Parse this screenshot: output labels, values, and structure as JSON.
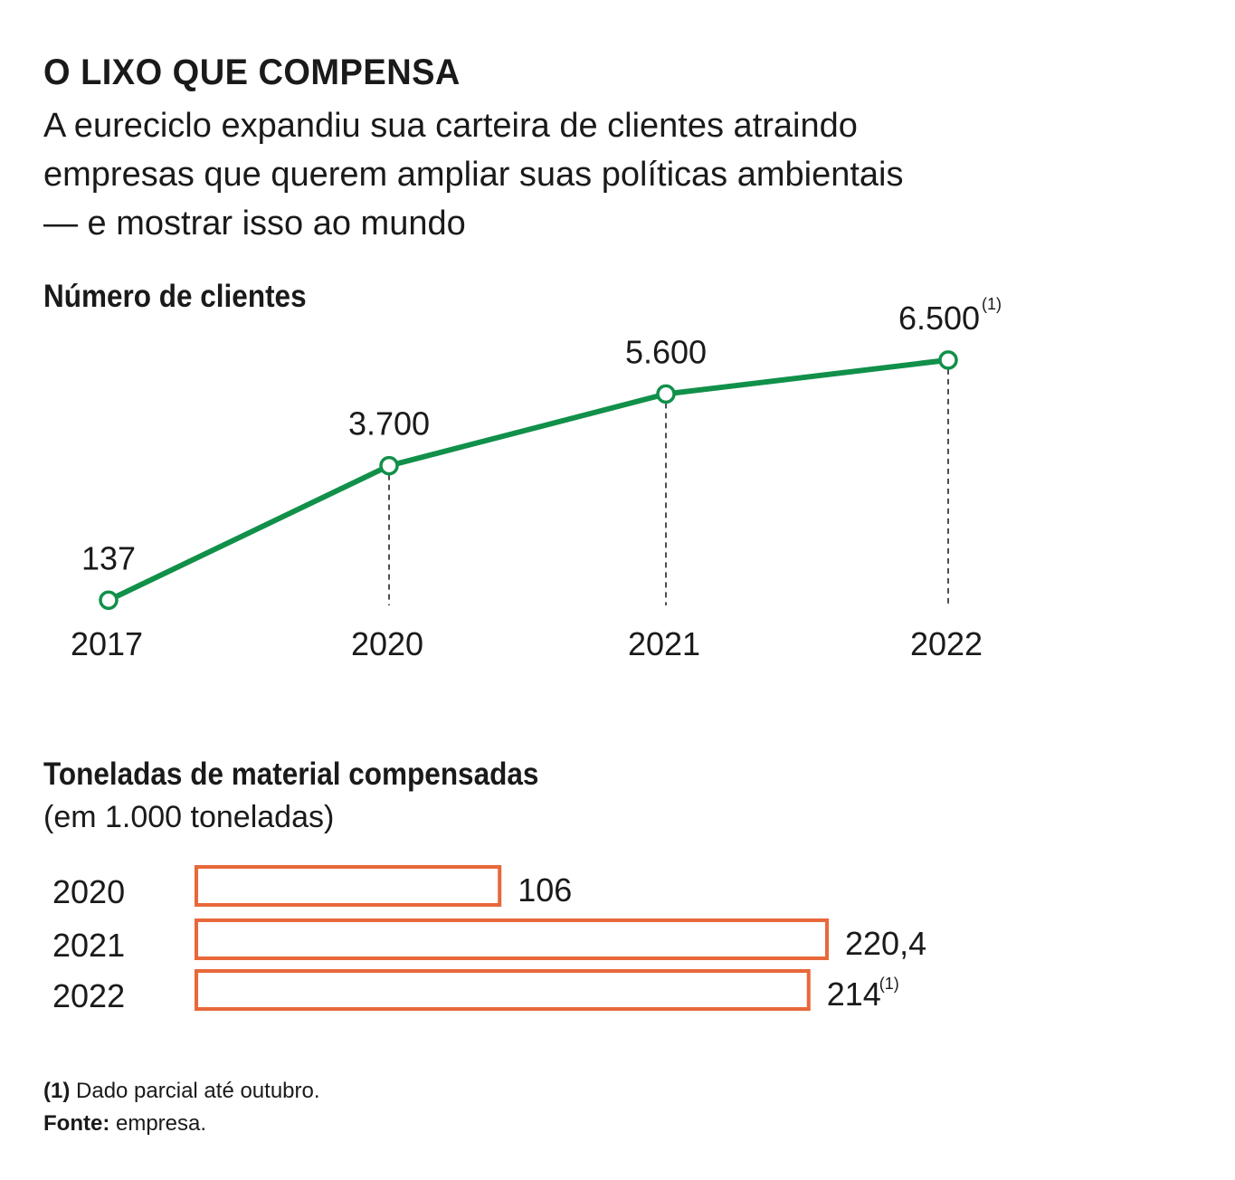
{
  "header": {
    "title": "O LIXO QUE COMPENSA",
    "subtitle": "A eureciclo expandiu sua carteira de clientes atraindo empresas que querem ampliar suas políticas ambientais — e mostrar isso ao mundo"
  },
  "colors": {
    "line": "#11904a",
    "bar": "#e8683a",
    "text": "#1a1a1a"
  },
  "chart_data": [
    {
      "type": "line",
      "title": "Número de clientes",
      "categories": [
        "2017",
        "2020",
        "2021",
        "2022"
      ],
      "values": [
        137,
        3700,
        5600,
        6500
      ],
      "labels": [
        "137",
        "3.700",
        "5.600",
        "6.500"
      ],
      "notes": [
        "",
        "",
        "",
        "(1)"
      ],
      "xlabel": "",
      "ylabel": "",
      "ylim": [
        0,
        7000
      ]
    },
    {
      "type": "bar",
      "orientation": "horizontal",
      "title": "Toneladas de material compensadas",
      "subtitle": "(em 1.000 toneladas)",
      "categories": [
        "2020",
        "2021",
        "2022"
      ],
      "values": [
        106,
        220.4,
        214
      ],
      "labels": [
        "106",
        "220,4",
        "214"
      ],
      "notes": [
        "",
        "",
        "(1)"
      ],
      "xlim": [
        0,
        220.4
      ]
    }
  ],
  "footer": {
    "note_mark": "(1)",
    "note_text": "Dado parcial até outubro.",
    "source_label": "Fonte:",
    "source_text": "empresa."
  }
}
